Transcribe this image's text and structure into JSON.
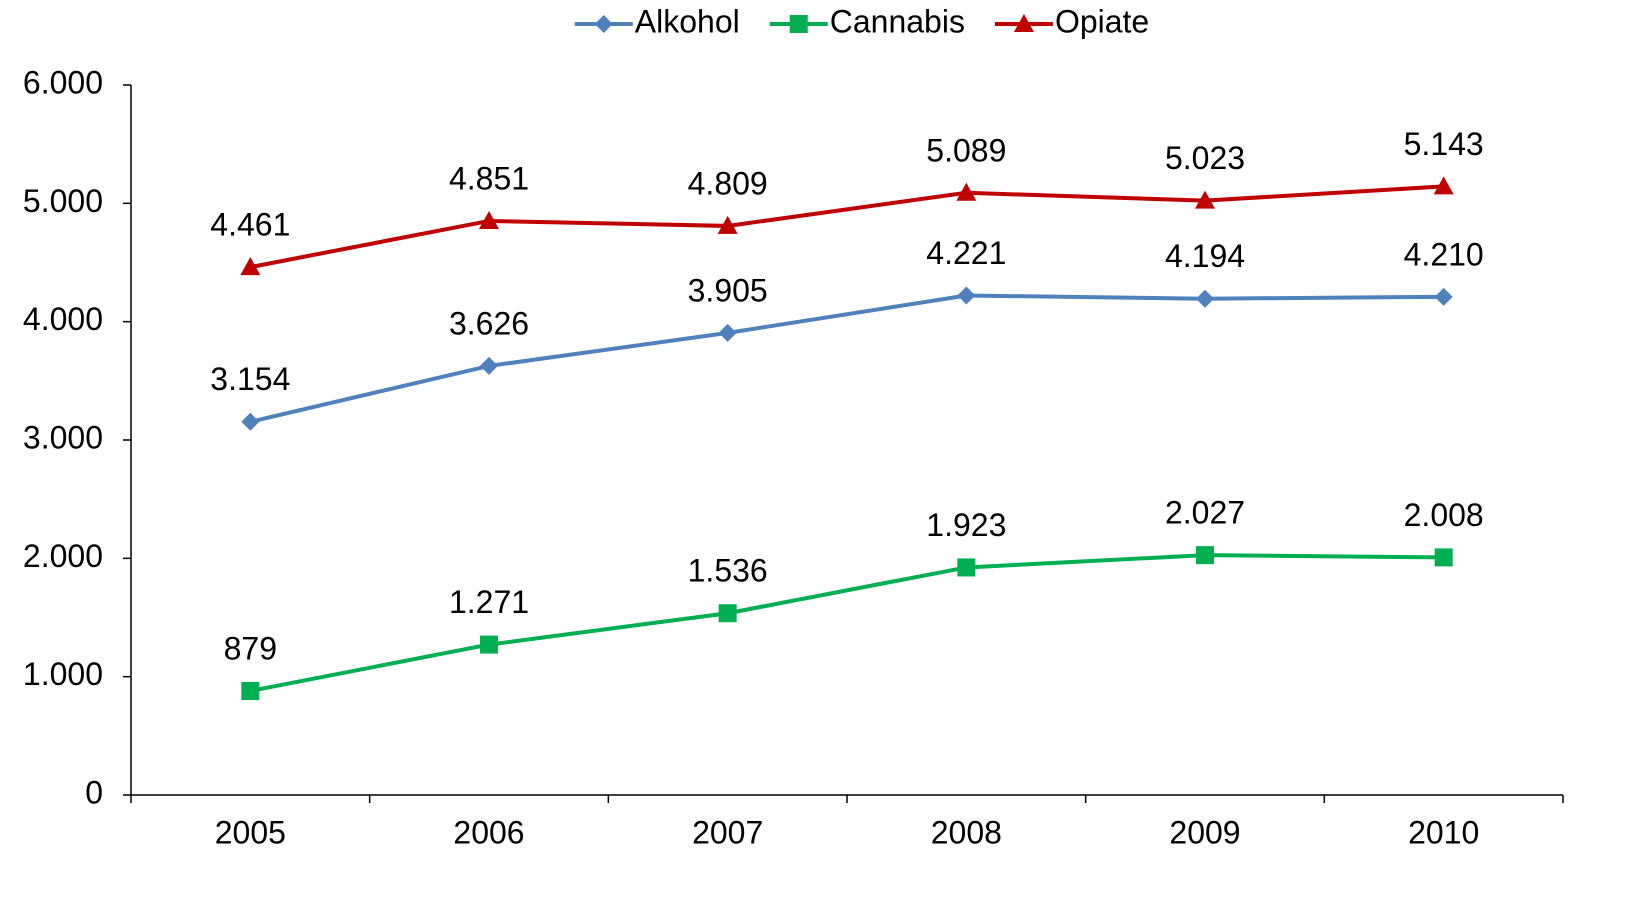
{
  "chart_data": {
    "type": "line",
    "categories": [
      "2005",
      "2006",
      "2007",
      "2008",
      "2009",
      "2010"
    ],
    "series": [
      {
        "name": "Alkohol",
        "color": "#4f81bd",
        "marker": "diamond",
        "values": [
          3154,
          3626,
          3905,
          4221,
          4194,
          4210
        ],
        "value_labels": [
          "3.154",
          "3.626",
          "3.905",
          "4.221",
          "4.194",
          "4.210"
        ]
      },
      {
        "name": "Cannabis",
        "color": "#00b050",
        "marker": "square",
        "values": [
          879,
          1271,
          1536,
          1923,
          2027,
          2008
        ],
        "value_labels": [
          "879",
          "1.271",
          "1.536",
          "1.923",
          "2.027",
          "2.008"
        ]
      },
      {
        "name": "Opiate",
        "color": "#c00000",
        "marker": "triangle",
        "values": [
          4461,
          4851,
          4809,
          5089,
          5023,
          5143
        ],
        "value_labels": [
          "4.461",
          "4.851",
          "4.809",
          "5.089",
          "5.023",
          "5.143"
        ]
      }
    ],
    "ylim": [
      0,
      6000
    ],
    "yticks": [
      0,
      {
        "value": 1000,
        "label": "1.000"
      },
      {
        "value": 2000,
        "label": "2.000"
      },
      {
        "value": 3000,
        "label": "3.000"
      },
      {
        "value": 4000,
        "label": "4.000"
      },
      {
        "value": 5000,
        "label": "5.000"
      },
      {
        "value": 6000,
        "label": "6.000"
      }
    ],
    "legend": "top",
    "grid": false
  }
}
